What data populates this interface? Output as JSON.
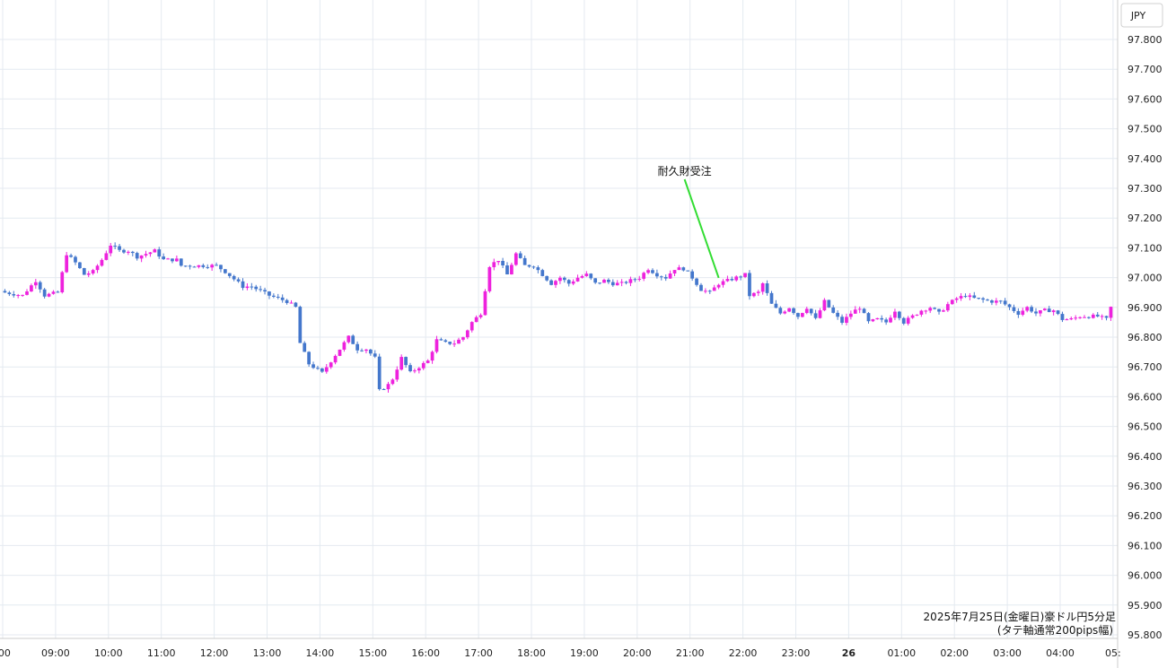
{
  "chart_data": {
    "type": "candlestick",
    "currency_label": "JPY",
    "caption_line1": "2025年7月25日(金曜日)豪ドル円5分足",
    "caption_line2": "(タテ軸通常200pips幅)",
    "ylim": [
      95.8,
      97.9
    ],
    "y_ticks": [
      "97.800",
      "97.700",
      "97.600",
      "97.500",
      "97.400",
      "97.300",
      "97.200",
      "97.100",
      "97.000",
      "96.900",
      "96.800",
      "96.700",
      "96.600",
      "96.500",
      "96.400",
      "96.300",
      "96.200",
      "96.100",
      "96.000",
      "95.900",
      "95.800"
    ],
    "x_ticks": [
      {
        "label": ":00",
        "bold": false
      },
      {
        "label": "09:00",
        "bold": false
      },
      {
        "label": "10:00",
        "bold": false
      },
      {
        "label": "11:00",
        "bold": false
      },
      {
        "label": "12:00",
        "bold": false
      },
      {
        "label": "13:00",
        "bold": false
      },
      {
        "label": "14:00",
        "bold": false
      },
      {
        "label": "15:00",
        "bold": false
      },
      {
        "label": "16:00",
        "bold": false
      },
      {
        "label": "17:00",
        "bold": false
      },
      {
        "label": "18:00",
        "bold": false
      },
      {
        "label": "19:00",
        "bold": false
      },
      {
        "label": "20:00",
        "bold": false
      },
      {
        "label": "21:00",
        "bold": false
      },
      {
        "label": "22:00",
        "bold": false
      },
      {
        "label": "23:00",
        "bold": false
      },
      {
        "label": "26",
        "bold": true
      },
      {
        "label": "01:00",
        "bold": false
      },
      {
        "label": "02:00",
        "bold": false
      },
      {
        "label": "03:00",
        "bold": false
      },
      {
        "label": "04:00",
        "bold": false
      },
      {
        "label": "05:",
        "bold": false
      }
    ],
    "bar_interval_minutes": 5,
    "bars_per_hour": 12,
    "first_bar_offset": 0,
    "annotation": {
      "text": "耐久財受注",
      "bar_index": 162,
      "price": 96.99
    },
    "colors": {
      "up": "#ee22dd",
      "down": "#4477cc",
      "grid": "#e4eaf0",
      "annotation_line": "#33dd33"
    },
    "close_path": [
      [
        0,
        96.95
      ],
      [
        4,
        96.94
      ],
      [
        7,
        96.99
      ],
      [
        9,
        96.94
      ],
      [
        12,
        96.95
      ],
      [
        14,
        97.08
      ],
      [
        16,
        97.05
      ],
      [
        18,
        97.01
      ],
      [
        20,
        97.02
      ],
      [
        22,
        97.06
      ],
      [
        24,
        97.11
      ],
      [
        26,
        97.09
      ],
      [
        28,
        97.09
      ],
      [
        30,
        97.07
      ],
      [
        32,
        97.08
      ],
      [
        34,
        97.09
      ],
      [
        36,
        97.06
      ],
      [
        39,
        97.06
      ],
      [
        40,
        97.04
      ],
      [
        44,
        97.04
      ],
      [
        48,
        97.04
      ],
      [
        50,
        97.02
      ],
      [
        54,
        96.97
      ],
      [
        56,
        96.97
      ],
      [
        60,
        96.94
      ],
      [
        64,
        96.92
      ],
      [
        66,
        96.9
      ],
      [
        67,
        96.78
      ],
      [
        69,
        96.71
      ],
      [
        72,
        96.68
      ],
      [
        73,
        96.7
      ],
      [
        76,
        96.76
      ],
      [
        78,
        96.8
      ],
      [
        80,
        96.76
      ],
      [
        82,
        96.76
      ],
      [
        84,
        96.73
      ],
      [
        85,
        96.62
      ],
      [
        87,
        96.64
      ],
      [
        88,
        96.66
      ],
      [
        90,
        96.73
      ],
      [
        92,
        96.68
      ],
      [
        94,
        96.7
      ],
      [
        96,
        96.72
      ],
      [
        98,
        96.79
      ],
      [
        100,
        96.78
      ],
      [
        102,
        96.78
      ],
      [
        104,
        96.8
      ],
      [
        106,
        96.85
      ],
      [
        108,
        96.88
      ],
      [
        109,
        96.96
      ],
      [
        110,
        97.04
      ],
      [
        112,
        97.06
      ],
      [
        114,
        97.01
      ],
      [
        116,
        97.08
      ],
      [
        118,
        97.04
      ],
      [
        120,
        97.04
      ],
      [
        122,
        97.01
      ],
      [
        124,
        96.98
      ],
      [
        126,
        97.0
      ],
      [
        128,
        96.98
      ],
      [
        130,
        97.0
      ],
      [
        132,
        97.01
      ],
      [
        134,
        96.98
      ],
      [
        136,
        96.99
      ],
      [
        138,
        96.98
      ],
      [
        140,
        96.98
      ],
      [
        142,
        96.99
      ],
      [
        144,
        97.0
      ],
      [
        146,
        97.03
      ],
      [
        148,
        97.01
      ],
      [
        150,
        97.0
      ],
      [
        152,
        97.03
      ],
      [
        154,
        97.03
      ],
      [
        156,
        97.0
      ],
      [
        158,
        96.96
      ],
      [
        160,
        96.95
      ],
      [
        162,
        96.98
      ],
      [
        164,
        96.99
      ],
      [
        166,
        97.0
      ],
      [
        168,
        97.01
      ],
      [
        169,
        96.94
      ],
      [
        171,
        96.95
      ],
      [
        172,
        96.98
      ],
      [
        174,
        96.91
      ],
      [
        176,
        96.88
      ],
      [
        178,
        96.9
      ],
      [
        180,
        96.87
      ],
      [
        182,
        96.9
      ],
      [
        184,
        96.86
      ],
      [
        186,
        96.92
      ],
      [
        188,
        96.88
      ],
      [
        190,
        96.85
      ],
      [
        192,
        96.88
      ],
      [
        194,
        96.9
      ],
      [
        196,
        96.85
      ],
      [
        198,
        96.86
      ],
      [
        200,
        96.85
      ],
      [
        202,
        96.89
      ],
      [
        204,
        96.85
      ],
      [
        206,
        96.87
      ],
      [
        208,
        96.89
      ],
      [
        210,
        96.9
      ],
      [
        212,
        96.88
      ],
      [
        214,
        96.91
      ],
      [
        216,
        96.93
      ],
      [
        218,
        96.94
      ],
      [
        220,
        96.93
      ],
      [
        224,
        96.92
      ],
      [
        226,
        96.92
      ],
      [
        228,
        96.9
      ],
      [
        230,
        96.88
      ],
      [
        232,
        96.9
      ],
      [
        234,
        96.88
      ],
      [
        236,
        96.89
      ],
      [
        238,
        96.89
      ],
      [
        240,
        96.86
      ],
      [
        242,
        96.86
      ],
      [
        244,
        96.87
      ],
      [
        246,
        96.87
      ],
      [
        248,
        96.87
      ],
      [
        250,
        96.86
      ],
      [
        251,
        96.9
      ]
    ]
  }
}
